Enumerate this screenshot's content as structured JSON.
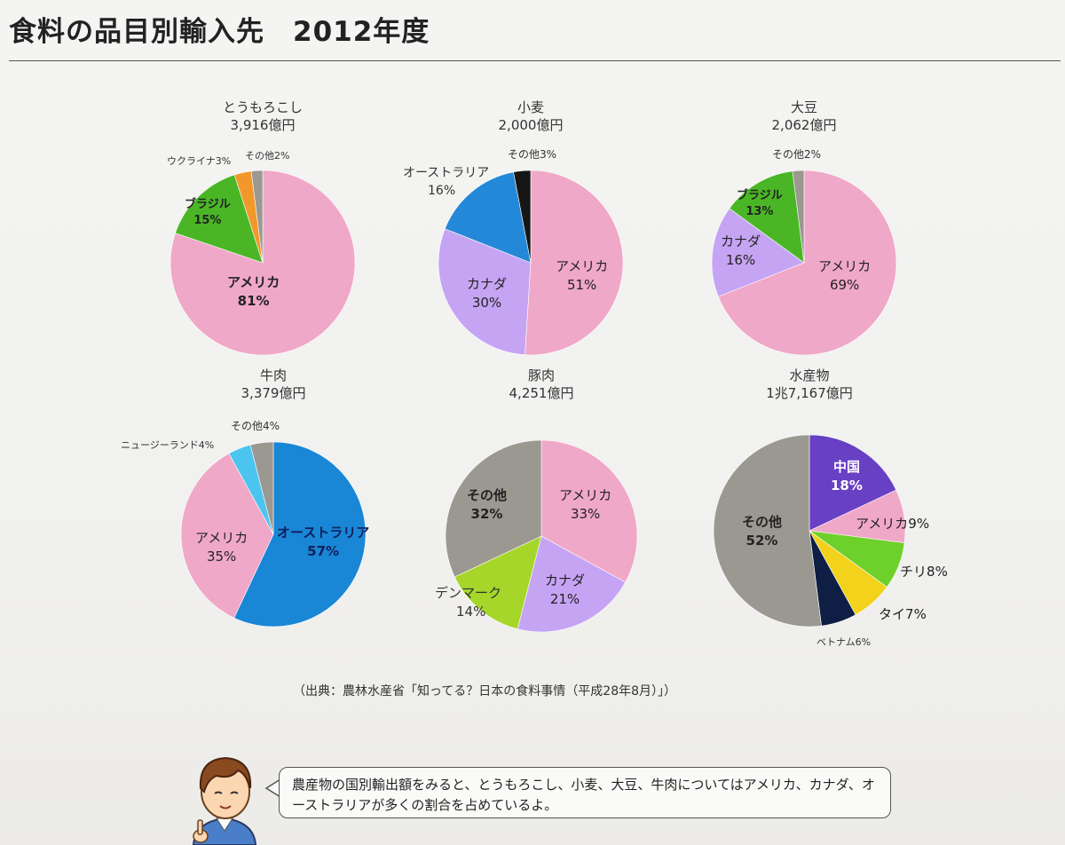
{
  "title": "食料の品目別輸入先　2012年度",
  "source": "（出典：農林水産省「知ってる？日本の食料事情（平成28年8月）」）",
  "speech": "農産物の国別輸出額をみると、とうもろこし、小麦、大豆、牛肉についてはアメリカ、カナダ、オーストラリアが多くの割合を占めているよ。",
  "chart_data": [
    {
      "type": "pie",
      "title": "とうもろこし",
      "subtitle": "3,916億円",
      "slices": [
        {
          "label": "アメリカ",
          "value": 81,
          "color": "#f0a8c8"
        },
        {
          "label": "ブラジル",
          "value": 15,
          "color": "#4ab626"
        },
        {
          "label": "ウクライナ",
          "value": 3,
          "color": "#f2982a"
        },
        {
          "label": "その他",
          "value": 2,
          "color": "#9a9890"
        }
      ]
    },
    {
      "type": "pie",
      "title": "小麦",
      "subtitle": "2,000億円",
      "slices": [
        {
          "label": "アメリカ",
          "value": 51,
          "color": "#f0a8c8"
        },
        {
          "label": "カナダ",
          "value": 30,
          "color": "#c6a4f4"
        },
        {
          "label": "オーストラリア",
          "value": 16,
          "color": "#2488d8"
        },
        {
          "label": "その他",
          "value": 3,
          "color": "#161616"
        }
      ]
    },
    {
      "type": "pie",
      "title": "大豆",
      "subtitle": "2,062億円",
      "slices": [
        {
          "label": "アメリカ",
          "value": 69,
          "color": "#f0a8c8"
        },
        {
          "label": "カナダ",
          "value": 16,
          "color": "#c6a4f4"
        },
        {
          "label": "ブラジル",
          "value": 13,
          "color": "#4ab626"
        },
        {
          "label": "その他",
          "value": 2,
          "color": "#9a9890"
        }
      ]
    },
    {
      "type": "pie",
      "title": "牛肉",
      "subtitle": "3,379億円",
      "slices": [
        {
          "label": "オーストラリア",
          "value": 57,
          "color": "#1a86d6"
        },
        {
          "label": "アメリカ",
          "value": 35,
          "color": "#f0a8c8"
        },
        {
          "label": "ニュージーランド",
          "value": 4,
          "color": "#4cc4f0"
        },
        {
          "label": "その他",
          "value": 4,
          "color": "#9a9890"
        }
      ]
    },
    {
      "type": "pie",
      "title": "豚肉",
      "subtitle": "4,251億円",
      "slices": [
        {
          "label": "アメリカ",
          "value": 33,
          "color": "#f0a8c8"
        },
        {
          "label": "カナダ",
          "value": 21,
          "color": "#c6a4f4"
        },
        {
          "label": "デンマーク",
          "value": 14,
          "color": "#a6d62a"
        },
        {
          "label": "その他",
          "value": 32,
          "color": "#9a9890"
        }
      ]
    },
    {
      "type": "pie",
      "title": "水産物",
      "subtitle": "1兆7,167億円",
      "slices": [
        {
          "label": "中国",
          "value": 18,
          "color": "#6840c4"
        },
        {
          "label": "アメリカ",
          "value": 9,
          "color": "#f0a8c8"
        },
        {
          "label": "チリ",
          "value": 8,
          "color": "#6ed02a"
        },
        {
          "label": "タイ",
          "value": 7,
          "color": "#f2d21a"
        },
        {
          "label": "ベトナム",
          "value": 6,
          "color": "#0e1e44"
        },
        {
          "label": "その他",
          "value": 52,
          "color": "#9a9890"
        }
      ]
    }
  ]
}
